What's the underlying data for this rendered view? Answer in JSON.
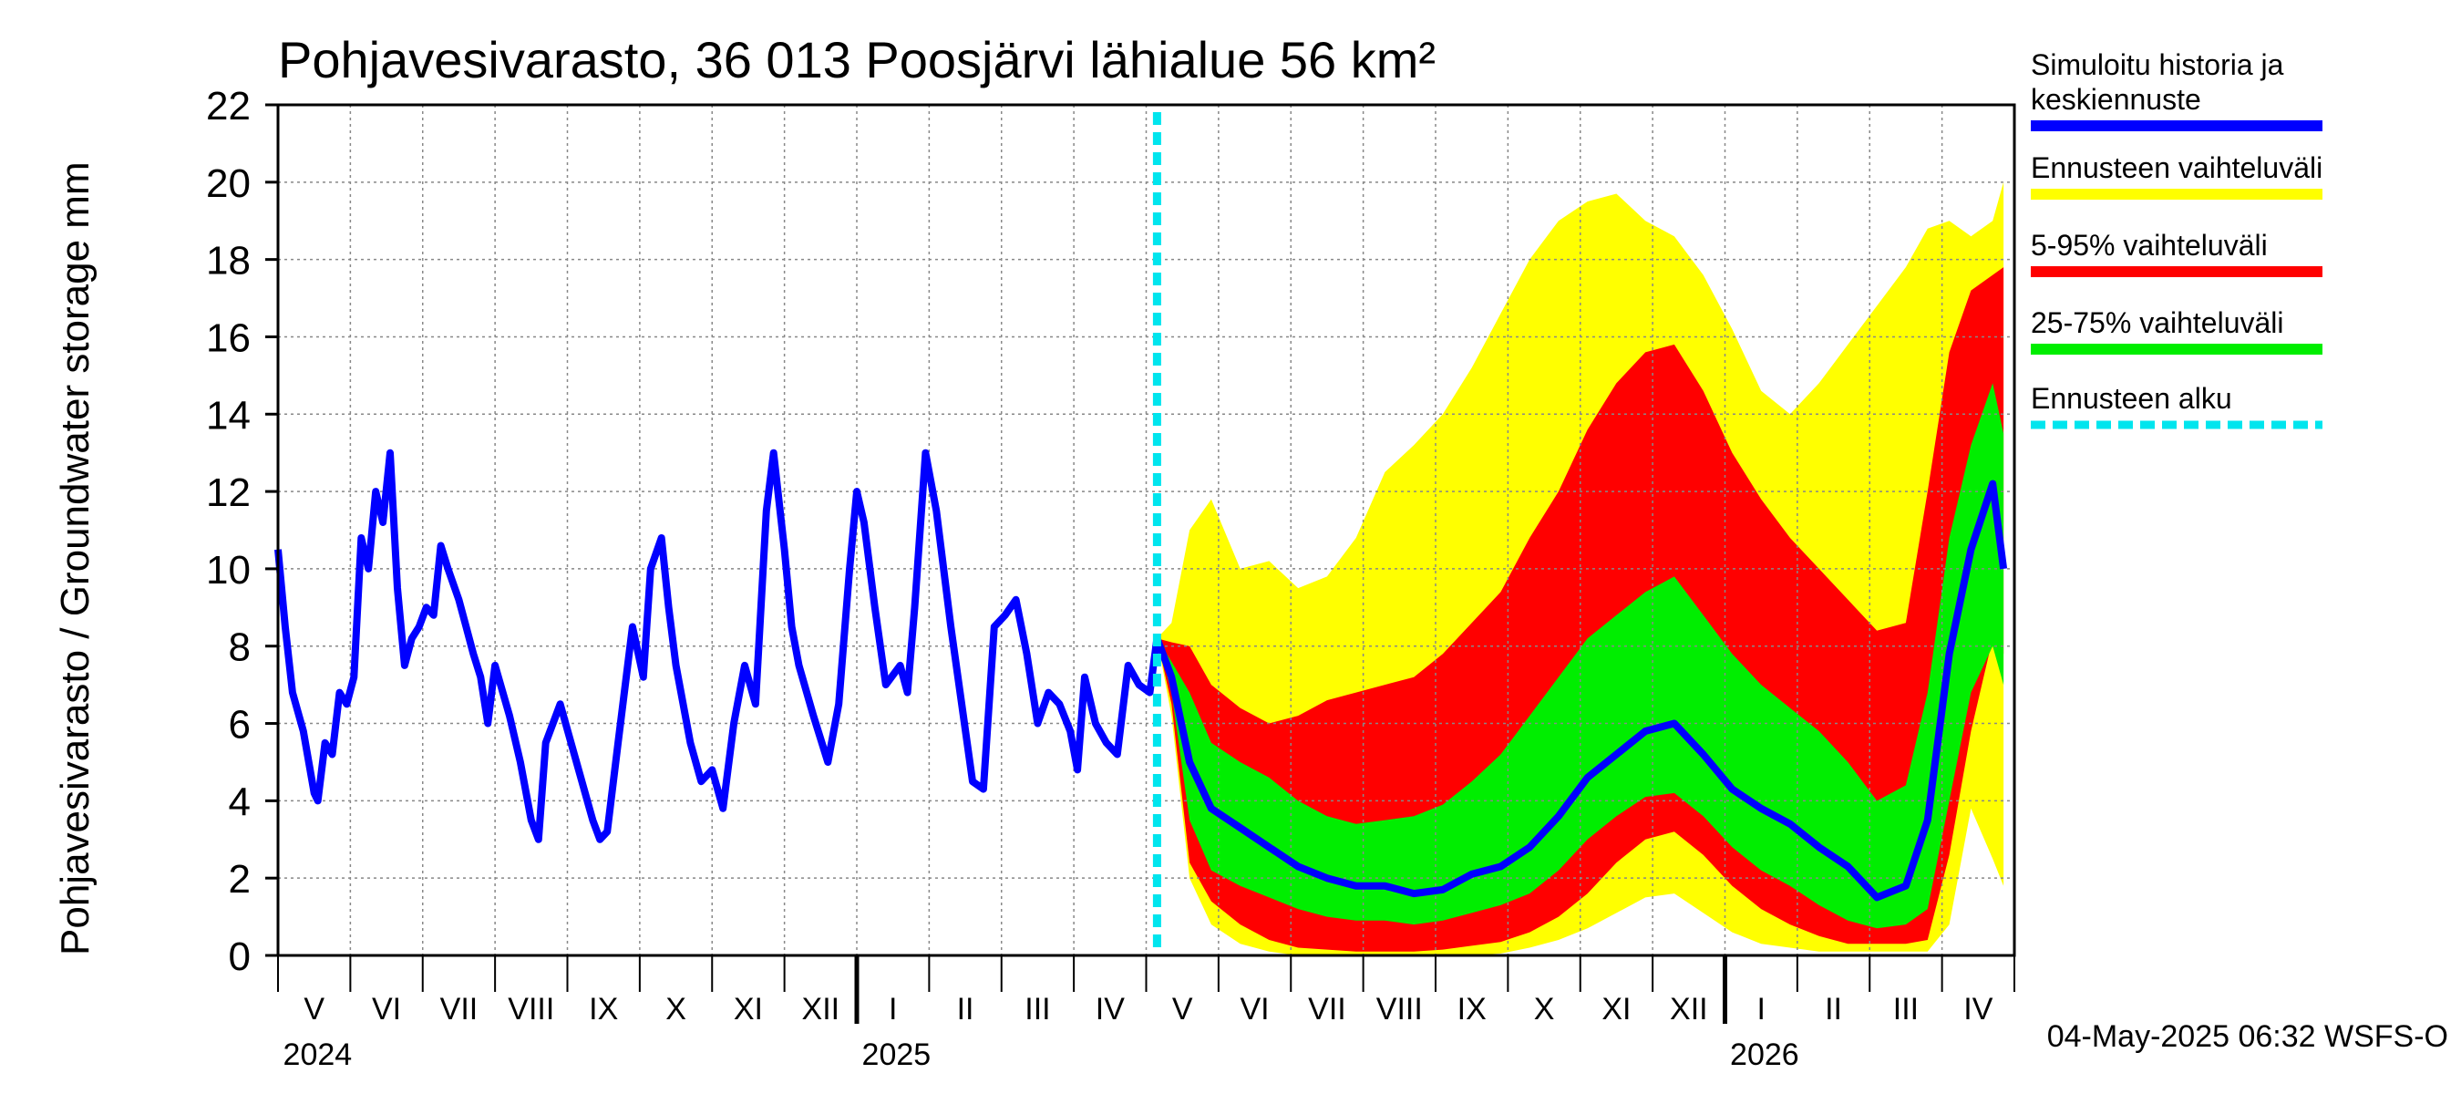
{
  "chart_data": {
    "type": "area",
    "title": "Pohjavesivarasto, 36 013 Poosjärvi lähialue 56 km²",
    "ylabel": "Pohjavesivarasto / Groundwater storage   mm",
    "ylim": [
      0,
      22
    ],
    "y_ticks": [
      0,
      2,
      4,
      6,
      8,
      10,
      12,
      14,
      16,
      18,
      20,
      22
    ],
    "grid": true,
    "legend_position": "right",
    "months": [
      "V",
      "VI",
      "VII",
      "VIII",
      "IX",
      "X",
      "XI",
      "XII",
      "I",
      "II",
      "III",
      "IV",
      "V",
      "VI",
      "VII",
      "VIII",
      "IX",
      "X",
      "XI",
      "XII",
      "I",
      "II",
      "III",
      "IV"
    ],
    "years": [
      "2024",
      "2025",
      "2026"
    ],
    "forecast_start": "2025-05-04",
    "timestamp": "04-May-2025 06:32 WSFS-O",
    "colors": {
      "history": "#0000ff",
      "range_full": "#ffff00",
      "range_5_95": "#ff0000",
      "range_25_75": "#00ee00",
      "forecast_start": "#00e5ee"
    },
    "legend": [
      {
        "key": "history",
        "label_lines": [
          "Simuloitu historia ja",
          "keskiennuste"
        ],
        "style": "solid"
      },
      {
        "key": "range_full",
        "label_lines": [
          "Ennusteen vaihteluväli"
        ],
        "style": "solid"
      },
      {
        "key": "range_5_95",
        "label_lines": [
          "5-95% vaihteluväli"
        ],
        "style": "solid"
      },
      {
        "key": "range_25_75",
        "label_lines": [
          "25-75% vaihteluväli"
        ],
        "style": "solid"
      },
      {
        "key": "forecast_start",
        "label_lines": [
          "Ennusteen alku"
        ],
        "style": "dashed"
      }
    ],
    "history": {
      "x_months": [
        0,
        0.1,
        0.2,
        0.35,
        0.5,
        0.55,
        0.65,
        0.75,
        0.85,
        0.95,
        1.05,
        1.15,
        1.25,
        1.35,
        1.45,
        1.55,
        1.65,
        1.75,
        1.85,
        1.95,
        2.05,
        2.15,
        2.25,
        2.35,
        2.5,
        2.6,
        2.7,
        2.8,
        2.9,
        3.0,
        3.2,
        3.35,
        3.5,
        3.6,
        3.7,
        3.9,
        4.05,
        4.2,
        4.35,
        4.45,
        4.55,
        4.7,
        4.9,
        5.05,
        5.15,
        5.3,
        5.4,
        5.5,
        5.7,
        5.85,
        6.0,
        6.15,
        6.3,
        6.45,
        6.6,
        6.75,
        6.85,
        7.0,
        7.1,
        7.2,
        7.4,
        7.6,
        7.75,
        7.9,
        8.0,
        8.1,
        8.25,
        8.4,
        8.6,
        8.7,
        8.8,
        8.95,
        9.1,
        9.3,
        9.45,
        9.6,
        9.75,
        9.9,
        10.05,
        10.2,
        10.35,
        10.5,
        10.65,
        10.8,
        10.95,
        11.05,
        11.15,
        11.3,
        11.45,
        11.6,
        11.75,
        11.9,
        12.05,
        12.15
      ],
      "values": [
        10.5,
        8.5,
        6.8,
        5.8,
        4.2,
        4.0,
        5.5,
        5.2,
        6.8,
        6.5,
        7.2,
        10.8,
        10.0,
        12.0,
        11.2,
        13.0,
        9.5,
        7.5,
        8.2,
        8.5,
        9.0,
        8.8,
        10.6,
        10.0,
        9.2,
        8.5,
        7.8,
        7.2,
        6.0,
        7.5,
        6.2,
        5.0,
        3.5,
        3.0,
        5.5,
        6.5,
        5.5,
        4.5,
        3.5,
        3.0,
        3.2,
        5.5,
        8.5,
        7.2,
        10.0,
        10.8,
        9.0,
        7.5,
        5.5,
        4.5,
        4.8,
        3.8,
        6.0,
        7.5,
        6.5,
        11.5,
        13.0,
        10.5,
        8.5,
        7.5,
        6.2,
        5.0,
        6.5,
        10.0,
        12.0,
        11.2,
        9.0,
        7.0,
        7.5,
        6.8,
        9.0,
        13.0,
        11.5,
        8.5,
        6.5,
        4.5,
        4.3,
        8.5,
        8.8,
        9.2,
        7.8,
        6.0,
        6.8,
        6.5,
        5.8,
        4.8,
        7.2,
        6.0,
        5.5,
        5.2,
        7.5,
        7.0,
        6.8,
        8.2
      ]
    },
    "forecast": {
      "x_months": [
        12.15,
        12.35,
        12.6,
        12.9,
        13.3,
        13.7,
        14.1,
        14.5,
        14.9,
        15.3,
        15.7,
        16.1,
        16.5,
        16.9,
        17.3,
        17.7,
        18.1,
        18.5,
        18.9,
        19.3,
        19.7,
        20.1,
        20.5,
        20.9,
        21.3,
        21.7,
        22.1,
        22.5,
        22.8,
        23.1,
        23.4,
        23.7,
        23.85
      ],
      "median": [
        8.2,
        7.2,
        5.0,
        3.8,
        3.3,
        2.8,
        2.3,
        2.0,
        1.8,
        1.8,
        1.6,
        1.7,
        2.1,
        2.3,
        2.8,
        3.6,
        4.6,
        5.2,
        5.8,
        6.0,
        5.2,
        4.3,
        3.8,
        3.4,
        2.8,
        2.3,
        1.5,
        1.8,
        3.5,
        7.8,
        10.5,
        12.2,
        10.0
      ],
      "p25": [
        8.2,
        6.8,
        3.5,
        2.2,
        1.8,
        1.5,
        1.2,
        1.0,
        0.9,
        0.9,
        0.8,
        0.9,
        1.1,
        1.3,
        1.6,
        2.2,
        3.0,
        3.6,
        4.1,
        4.2,
        3.6,
        2.8,
        2.2,
        1.8,
        1.3,
        0.9,
        0.7,
        0.8,
        1.2,
        4.0,
        6.8,
        8.0,
        7.0
      ],
      "p75": [
        8.2,
        7.6,
        6.8,
        5.5,
        5.0,
        4.6,
        4.0,
        3.6,
        3.4,
        3.5,
        3.6,
        3.9,
        4.5,
        5.2,
        6.2,
        7.2,
        8.2,
        8.8,
        9.4,
        9.8,
        8.8,
        7.8,
        7.0,
        6.4,
        5.8,
        5.0,
        4.0,
        4.4,
        6.8,
        10.8,
        13.2,
        14.8,
        13.5
      ],
      "p05": [
        8.2,
        6.5,
        2.4,
        1.4,
        0.8,
        0.4,
        0.2,
        0.15,
        0.1,
        0.1,
        0.1,
        0.15,
        0.25,
        0.35,
        0.6,
        1.0,
        1.6,
        2.4,
        3.0,
        3.2,
        2.6,
        1.8,
        1.2,
        0.8,
        0.5,
        0.3,
        0.3,
        0.3,
        0.4,
        2.6,
        5.8,
        8.2,
        7.8
      ],
      "p95": [
        8.2,
        8.1,
        8.0,
        7.0,
        6.4,
        6.0,
        6.2,
        6.6,
        6.8,
        7.0,
        7.2,
        7.8,
        8.6,
        9.4,
        10.8,
        12.0,
        13.6,
        14.8,
        15.6,
        15.8,
        14.6,
        13.0,
        11.8,
        10.8,
        10.0,
        9.2,
        8.4,
        8.6,
        12.0,
        15.6,
        17.2,
        17.6,
        17.8
      ],
      "min": [
        8.2,
        6.2,
        2.0,
        0.8,
        0.3,
        0.1,
        0,
        0,
        0,
        0,
        0,
        0,
        0,
        0.05,
        0.2,
        0.4,
        0.7,
        1.1,
        1.5,
        1.6,
        1.1,
        0.6,
        0.3,
        0.2,
        0.1,
        0.1,
        0.1,
        0.1,
        0.1,
        0.8,
        3.8,
        2.5,
        1.8
      ],
      "max": [
        8.2,
        8.6,
        11.0,
        11.8,
        10.0,
        10.2,
        9.5,
        9.8,
        10.8,
        12.5,
        13.2,
        14.0,
        15.2,
        16.6,
        18.0,
        19.0,
        19.5,
        19.7,
        19.0,
        18.6,
        17.6,
        16.2,
        14.6,
        14.0,
        14.8,
        15.8,
        16.8,
        17.8,
        18.8,
        19.0,
        18.6,
        19.0,
        20.0
      ]
    }
  }
}
